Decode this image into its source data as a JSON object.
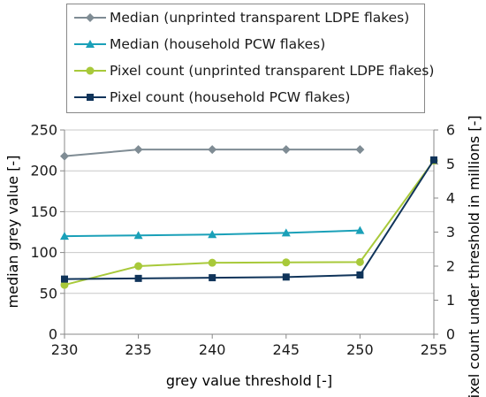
{
  "chart_data": {
    "type": "line",
    "xlabel": "grey value threshold   [-]",
    "ylabel_left": "median grey value   [-]",
    "ylabel_right": "Pixel count under threshold in millions   [-]",
    "x": [
      230,
      235,
      240,
      245,
      250,
      255
    ],
    "x_ticks": [
      "230",
      "235",
      "240",
      "245",
      "250",
      "255"
    ],
    "xlim": [
      230,
      255
    ],
    "ylim_left": [
      0,
      250
    ],
    "y_ticks_left": [
      "0",
      "50",
      "100",
      "150",
      "200",
      "250"
    ],
    "ylim_right": [
      0,
      6
    ],
    "y_ticks_right": [
      "0",
      "1",
      "2",
      "3",
      "4",
      "5",
      "6"
    ],
    "grid": "horizontal",
    "legend_position": "top",
    "series": [
      {
        "name": "Median (unprinted transparent LDPE flakes)",
        "axis": "left",
        "color": "#7f8c94",
        "marker": "diamond",
        "x": [
          230,
          235,
          240,
          245,
          250
        ],
        "values": [
          218,
          226,
          226,
          226,
          226
        ]
      },
      {
        "name": "Median (household PCW flakes)",
        "axis": "left",
        "color": "#1aa0b8",
        "marker": "triangle",
        "x": [
          230,
          235,
          240,
          245,
          250
        ],
        "values": [
          120,
          121,
          122,
          124,
          127
        ]
      },
      {
        "name": "Pixel count (unprinted transparent LDPE flakes)",
        "axis": "right",
        "color": "#a8c93a",
        "marker": "circle",
        "x": [
          230,
          235,
          240,
          245,
          250,
          255
        ],
        "values": [
          1.45,
          2.0,
          2.1,
          2.11,
          2.12,
          5.1
        ]
      },
      {
        "name": "Pixel count (household PCW flakes)",
        "axis": "right",
        "color": "#10345a",
        "marker": "square",
        "x": [
          230,
          235,
          240,
          245,
          250,
          255
        ],
        "values": [
          1.62,
          1.64,
          1.66,
          1.68,
          1.74,
          5.12
        ]
      }
    ]
  }
}
